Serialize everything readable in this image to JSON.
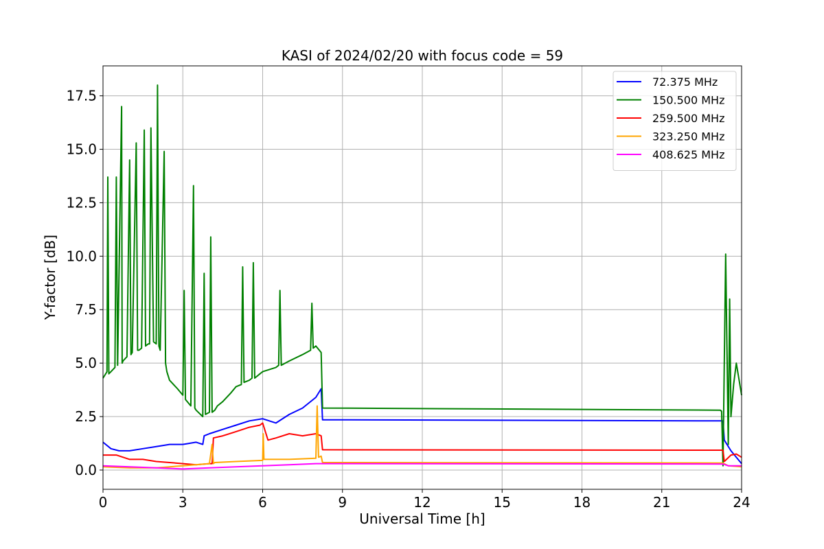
{
  "chart_data": {
    "type": "line",
    "title": "KASI of 2024/02/20 with focus code = 59",
    "xlabel": "Universal Time [h]",
    "ylabel": "Y-factor [dB]",
    "xlim": [
      0,
      24
    ],
    "ylim": [
      -0.9,
      18.9
    ],
    "xticks": [
      0,
      3,
      6,
      9,
      12,
      15,
      18,
      21,
      24
    ],
    "yticks": [
      0.0,
      2.5,
      5.0,
      7.5,
      10.0,
      12.5,
      15.0,
      17.5
    ],
    "xtick_labels": [
      "0",
      "3",
      "6",
      "9",
      "12",
      "15",
      "18",
      "21",
      "24"
    ],
    "ytick_labels": [
      "0.0",
      "2.5",
      "5.0",
      "7.5",
      "10.0",
      "12.5",
      "15.0",
      "17.5"
    ],
    "grid": true,
    "legend_position": "top-right",
    "series": [
      {
        "name": " 72.375 MHz",
        "color": "#0000ff",
        "x": [
          0.0,
          0.3,
          0.6,
          1.0,
          1.5,
          2.0,
          2.5,
          3.0,
          3.5,
          3.75,
          3.8,
          4.0,
          4.5,
          5.0,
          5.5,
          6.0,
          6.5,
          7.0,
          7.5,
          8.0,
          8.2,
          8.25,
          23.3,
          23.35,
          23.6,
          24.0
        ],
        "y": [
          1.3,
          1.0,
          0.9,
          0.9,
          1.0,
          1.1,
          1.2,
          1.2,
          1.3,
          1.2,
          1.6,
          1.7,
          1.9,
          2.1,
          2.3,
          2.4,
          2.2,
          2.6,
          2.9,
          3.4,
          3.8,
          2.35,
          2.3,
          1.4,
          0.9,
          0.3
        ]
      },
      {
        "name": "150.500 MHz",
        "color": "#008000",
        "x": [
          0.0,
          0.15,
          0.18,
          0.22,
          0.3,
          0.45,
          0.5,
          0.55,
          0.7,
          0.72,
          0.75,
          0.9,
          1.0,
          1.05,
          1.1,
          1.25,
          1.3,
          1.35,
          1.45,
          1.55,
          1.6,
          1.7,
          1.75,
          1.8,
          1.9,
          2.0,
          2.05,
          2.1,
          2.15,
          2.3,
          2.35,
          2.4,
          2.5,
          2.8,
          3.0,
          3.05,
          3.1,
          3.3,
          3.4,
          3.45,
          3.5,
          3.75,
          3.8,
          3.85,
          4.0,
          4.05,
          4.1,
          4.2,
          4.3,
          4.5,
          4.8,
          5.0,
          5.2,
          5.25,
          5.3,
          5.5,
          5.6,
          5.65,
          5.7,
          5.9,
          6.0,
          6.5,
          6.6,
          6.65,
          6.7,
          7.0,
          7.5,
          7.8,
          7.85,
          7.9,
          8.0,
          8.2,
          8.25,
          23.2,
          23.25,
          23.3,
          23.4,
          23.5,
          23.55,
          23.6,
          23.7,
          23.8,
          24.0
        ],
        "y": [
          4.3,
          4.6,
          13.7,
          4.5,
          4.6,
          4.8,
          13.7,
          4.9,
          17.0,
          5.0,
          5.1,
          5.3,
          14.5,
          5.4,
          5.5,
          15.3,
          5.6,
          5.6,
          5.7,
          15.9,
          5.8,
          5.9,
          5.9,
          16.0,
          6.0,
          5.9,
          18.0,
          5.8,
          5.6,
          14.9,
          5.0,
          4.6,
          4.2,
          3.8,
          3.5,
          8.4,
          3.3,
          3.0,
          13.3,
          2.9,
          2.8,
          2.5,
          9.2,
          2.6,
          2.7,
          10.9,
          2.7,
          2.8,
          3.0,
          3.2,
          3.6,
          3.9,
          4.0,
          9.5,
          4.1,
          4.2,
          4.3,
          9.7,
          4.3,
          4.5,
          4.6,
          4.8,
          4.9,
          8.4,
          4.9,
          5.1,
          5.4,
          5.6,
          7.8,
          5.7,
          5.8,
          5.5,
          2.9,
          2.8,
          2.75,
          0.2,
          10.1,
          1.2,
          8.0,
          2.5,
          4.0,
          5.0,
          3.5
        ]
      },
      {
        "name": "259.500 MHz",
        "color": "#ff0000",
        "x": [
          0.0,
          0.5,
          1.0,
          1.5,
          2.0,
          2.5,
          3.0,
          3.5,
          4.0,
          4.1,
          4.15,
          4.5,
          5.0,
          5.5,
          5.9,
          6.0,
          6.2,
          6.5,
          7.0,
          7.5,
          8.0,
          8.2,
          8.25,
          23.3,
          23.35,
          23.6,
          23.8,
          24.0
        ],
        "y": [
          0.7,
          0.7,
          0.5,
          0.5,
          0.4,
          0.35,
          0.3,
          0.25,
          0.3,
          0.3,
          1.5,
          1.6,
          1.8,
          2.0,
          2.1,
          2.2,
          1.4,
          1.5,
          1.7,
          1.6,
          1.7,
          1.6,
          0.95,
          0.93,
          0.4,
          0.7,
          0.75,
          0.6
        ]
      },
      {
        "name": "323.250 MHz",
        "color": "#ffa500",
        "x": [
          0.0,
          1.0,
          2.0,
          3.0,
          4.0,
          4.1,
          4.15,
          4.2,
          5.0,
          6.0,
          6.02,
          6.05,
          7.0,
          8.0,
          8.05,
          8.1,
          8.2,
          8.25,
          23.3,
          23.5,
          24.0
        ],
        "y": [
          0.15,
          0.1,
          0.1,
          0.2,
          0.3,
          1.2,
          0.3,
          0.35,
          0.4,
          0.45,
          1.7,
          0.5,
          0.5,
          0.55,
          3.0,
          0.6,
          0.65,
          0.35,
          0.33,
          0.2,
          0.15
        ]
      },
      {
        "name": "408.625 MHz",
        "color": "#ff00ff",
        "x": [
          0.0,
          1.0,
          2.0,
          3.0,
          4.0,
          5.0,
          6.0,
          7.0,
          8.0,
          8.2,
          8.25,
          23.3,
          23.5,
          24.0
        ],
        "y": [
          0.2,
          0.15,
          0.1,
          0.05,
          0.1,
          0.15,
          0.2,
          0.25,
          0.3,
          0.3,
          0.3,
          0.28,
          0.2,
          0.2
        ]
      }
    ]
  }
}
